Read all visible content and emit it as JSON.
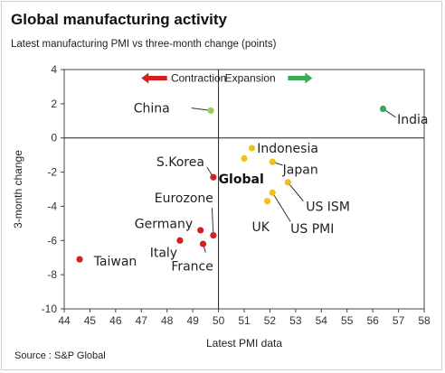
{
  "header": {
    "title": "Global manufacturing activity",
    "subtitle": "Latest manufacturing PMI vs three-month change (points)"
  },
  "footer": {
    "source": "Source : S&P Global"
  },
  "zones": {
    "left": "Contraction",
    "right": "Expansion"
  },
  "colors": {
    "contraction": "#d42020",
    "expansion_neg": "#f0c020",
    "expansion_pos": "#3aaa55",
    "china": "#9ccc55"
  },
  "chart_data": {
    "type": "scatter",
    "xlabel": "Latest PMI data",
    "ylabel": "3-month change",
    "xlim": [
      44,
      58
    ],
    "ylim": [
      -10,
      4
    ],
    "xticks": [
      44,
      45,
      46,
      47,
      48,
      49,
      50,
      51,
      52,
      53,
      54,
      55,
      56,
      57,
      58
    ],
    "yticks": [
      4,
      2,
      0,
      -2,
      -4,
      -6,
      -8,
      -10
    ],
    "grid": false,
    "points": [
      {
        "label": "China",
        "x": 49.7,
        "y": 1.6,
        "color": "#9ccc55"
      },
      {
        "label": "India",
        "x": 56.4,
        "y": 1.7,
        "color": "#3aaa55"
      },
      {
        "label": "Indonesia",
        "x": 51.3,
        "y": -0.6,
        "color": "#f0c020"
      },
      {
        "label": "Global",
        "x": 51.0,
        "y": -1.2,
        "color": "#f0c020",
        "bold": true
      },
      {
        "label": "Japan",
        "x": 52.1,
        "y": -1.4,
        "color": "#f0c020"
      },
      {
        "label": "US ISM",
        "x": 52.7,
        "y": -2.6,
        "color": "#f0c020"
      },
      {
        "label": "US PMI",
        "x": 52.1,
        "y": -3.2,
        "color": "#f0c020"
      },
      {
        "label": "UK",
        "x": 51.9,
        "y": -3.7,
        "color": "#f0c020"
      },
      {
        "label": "S.Korea",
        "x": 49.8,
        "y": -2.3,
        "color": "#d42020"
      },
      {
        "label": "Eurozone",
        "x": 49.8,
        "y": -5.7,
        "color": "#d42020"
      },
      {
        "label": "Germany",
        "x": 49.3,
        "y": -5.4,
        "color": "#d42020"
      },
      {
        "label": "Italy",
        "x": 48.5,
        "y": -6.0,
        "color": "#d42020"
      },
      {
        "label": "France",
        "x": 49.4,
        "y": -6.2,
        "color": "#d42020"
      },
      {
        "label": "Taiwan",
        "x": 44.6,
        "y": -7.1,
        "color": "#d42020"
      }
    ]
  }
}
